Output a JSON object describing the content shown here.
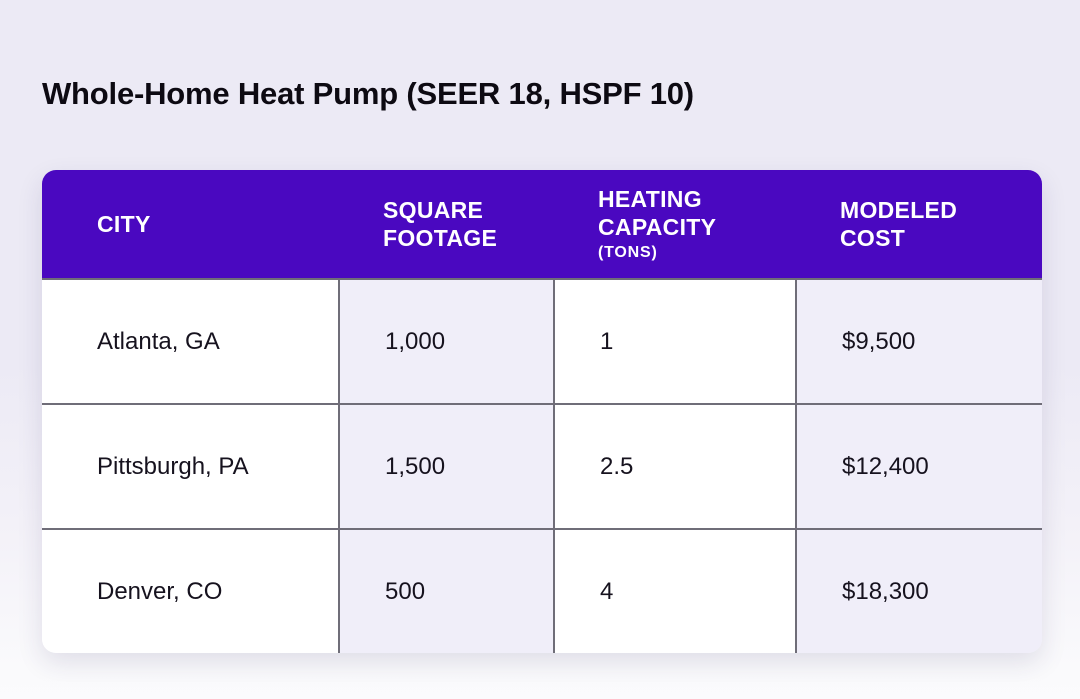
{
  "page": {
    "title": "Whole-Home Heat Pump (SEER 18, HSPF 10)"
  },
  "table": {
    "columns": [
      {
        "label": "CITY",
        "sublabel": ""
      },
      {
        "label": "SQUARE FOOTAGE",
        "sublabel": ""
      },
      {
        "label": "HEATING CAPACITY",
        "sublabel": "(TONS)"
      },
      {
        "label": "MODELED COST",
        "sublabel": ""
      }
    ],
    "rows": [
      {
        "city": "Atlanta, GA",
        "square_footage": "1,000",
        "heating_capacity_tons": "1",
        "modeled_cost": "$9,500"
      },
      {
        "city": "Pittsburgh, PA",
        "square_footage": "1,500",
        "heating_capacity_tons": "2.5",
        "modeled_cost": "$12,400"
      },
      {
        "city": "Denver, CO",
        "square_footage": "500",
        "heating_capacity_tons": "4",
        "modeled_cost": "$18,300"
      }
    ]
  },
  "colors": {
    "header_background": "#4a08c0",
    "header_text": "#ffffff",
    "page_background_top": "#eceaf5",
    "page_background_bottom": "#fbfbfd",
    "shaded_column_background": "#f0eef9",
    "row_background": "#ffffff",
    "grid_border": "#6f6d78",
    "body_text": "#16121e"
  }
}
